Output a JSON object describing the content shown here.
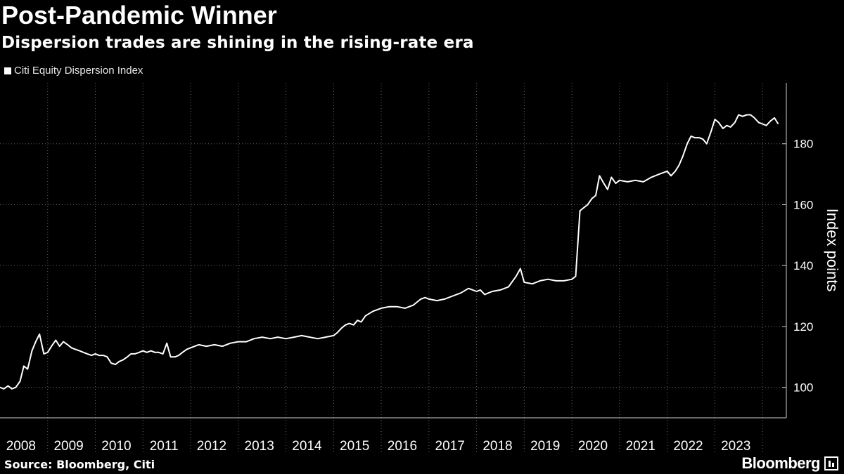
{
  "header": {
    "title": "Post-Pandemic Winner",
    "subtitle": "Dispersion trades are shining in the rising-rate era"
  },
  "footer": {
    "source": "Source: Bloomberg, Citi",
    "brand": "Bloomberg"
  },
  "colors": {
    "background": "#000000",
    "line": "#ffffff",
    "grid": "#666666"
  },
  "chart_data": {
    "type": "line",
    "title": "Post-Pandemic Winner",
    "subtitle": "Dispersion trades are shining in the rising-rate era",
    "xlabel": "",
    "ylabel": "Index points",
    "y_axis_side": "right",
    "ylim": [
      90,
      200
    ],
    "xlim": [
      2008.0,
      2024.5
    ],
    "yticks": [
      100,
      120,
      140,
      160,
      180
    ],
    "xtick_labels": [
      "2008",
      "2009",
      "2010",
      "2011",
      "2012",
      "2013",
      "2014",
      "2015",
      "2016",
      "2017",
      "2018",
      "2019",
      "2020",
      "2021",
      "2022",
      "2023"
    ],
    "grid": "vertical dotted",
    "legend": "top-left",
    "series": [
      {
        "name": "Citi Equity Dispersion Index",
        "color": "#ffffff",
        "x": [
          2008.0,
          2008.08,
          2008.17,
          2008.25,
          2008.33,
          2008.42,
          2008.5,
          2008.58,
          2008.67,
          2008.75,
          2008.83,
          2008.92,
          2009.0,
          2009.08,
          2009.17,
          2009.25,
          2009.33,
          2009.42,
          2009.5,
          2009.58,
          2009.67,
          2009.75,
          2009.83,
          2009.92,
          2010.0,
          2010.08,
          2010.17,
          2010.25,
          2010.33,
          2010.42,
          2010.5,
          2010.58,
          2010.67,
          2010.75,
          2010.83,
          2010.92,
          2011.0,
          2011.08,
          2011.17,
          2011.25,
          2011.33,
          2011.42,
          2011.5,
          2011.58,
          2011.67,
          2011.75,
          2011.83,
          2011.92,
          2012.0,
          2012.17,
          2012.33,
          2012.5,
          2012.67,
          2012.83,
          2013.0,
          2013.17,
          2013.33,
          2013.5,
          2013.67,
          2013.83,
          2014.0,
          2014.17,
          2014.33,
          2014.5,
          2014.67,
          2014.83,
          2015.0,
          2015.08,
          2015.17,
          2015.25,
          2015.33,
          2015.42,
          2015.5,
          2015.58,
          2015.67,
          2015.83,
          2016.0,
          2016.17,
          2016.33,
          2016.5,
          2016.67,
          2016.83,
          2016.92,
          2017.0,
          2017.17,
          2017.33,
          2017.5,
          2017.67,
          2017.83,
          2018.0,
          2018.08,
          2018.17,
          2018.25,
          2018.33,
          2018.5,
          2018.67,
          2018.83,
          2018.92,
          2019.0,
          2019.17,
          2019.33,
          2019.5,
          2019.67,
          2019.83,
          2020.0,
          2020.08,
          2020.17,
          2020.25,
          2020.33,
          2020.42,
          2020.5,
          2020.58,
          2020.67,
          2020.75,
          2020.83,
          2020.92,
          2021.0,
          2021.17,
          2021.33,
          2021.5,
          2021.67,
          2021.83,
          2022.0,
          2022.08,
          2022.17,
          2022.25,
          2022.33,
          2022.42,
          2022.5,
          2022.58,
          2022.67,
          2022.75,
          2022.83,
          2022.92,
          2023.0,
          2023.08,
          2023.17,
          2023.25,
          2023.33,
          2023.42,
          2023.5,
          2023.58,
          2023.67,
          2023.75,
          2023.83,
          2023.92,
          2024.0,
          2024.08,
          2024.17,
          2024.25,
          2024.33
        ],
        "values": [
          100,
          99.5,
          100.5,
          99.5,
          100,
          102,
          107,
          106,
          112,
          115,
          117.5,
          111,
          111.5,
          113.5,
          115.5,
          113.5,
          115,
          114,
          113,
          112.5,
          112,
          111.5,
          111,
          110.5,
          111,
          110.5,
          110.5,
          110,
          108,
          107.5,
          108.5,
          109,
          110,
          111,
          111,
          111.5,
          112,
          111.5,
          112,
          111.5,
          111.5,
          111,
          114.5,
          110,
          110,
          110.5,
          111.5,
          112.5,
          113,
          114,
          113.5,
          114,
          113.5,
          114.5,
          115,
          115,
          116,
          116.5,
          116,
          116.5,
          116,
          116.5,
          117,
          116.5,
          116,
          116.5,
          117,
          118,
          119.5,
          120.5,
          121,
          120.5,
          122,
          121.5,
          123.5,
          125,
          126,
          126.5,
          126.5,
          126,
          127,
          129,
          129.5,
          129,
          128.5,
          129,
          130,
          131,
          132.5,
          131.5,
          132,
          130.5,
          131,
          131.5,
          132,
          133,
          136.5,
          139,
          134.5,
          134,
          135,
          135.5,
          135,
          135,
          135.5,
          136.5,
          158,
          159,
          160,
          162,
          163,
          169.5,
          167,
          165,
          169,
          167,
          168,
          167.5,
          168,
          167.5,
          169,
          170,
          171,
          169.5,
          171,
          173,
          176,
          180,
          182.5,
          182,
          182,
          181.5,
          180,
          184,
          188,
          187,
          185,
          186,
          185.5,
          187,
          189.5,
          189,
          189.5,
          189.5,
          188.5,
          187,
          186.5,
          186,
          187.5,
          188.5,
          186.5
        ]
      }
    ]
  }
}
